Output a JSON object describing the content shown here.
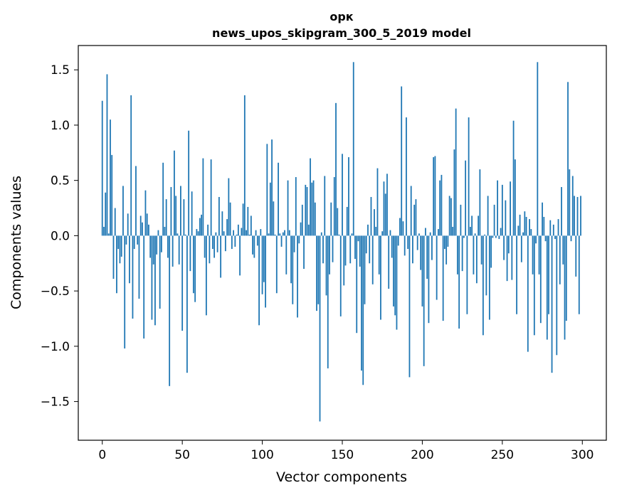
{
  "chart_data": {
    "type": "bar",
    "title": "орк",
    "subtitle": "news_upos_skipgram_300_5_2019 model",
    "xlabel": "Vector components",
    "ylabel": "Components values",
    "xlim": [
      -15,
      315
    ],
    "ylim": [
      -1.85,
      1.72
    ],
    "xticks": [
      0,
      50,
      100,
      150,
      200,
      250,
      300
    ],
    "yticks": [
      -1.5,
      -1.0,
      -0.5,
      0.0,
      0.5,
      1.0,
      1.5
    ],
    "ytick_labels": [
      "−1.5",
      "−1.0",
      "−0.5",
      "0.0",
      "0.5",
      "1.0",
      "1.5"
    ],
    "bar_color": "#1f77b4",
    "grid": false,
    "legend": "none",
    "x": [
      0,
      1,
      2,
      3,
      4,
      5,
      6,
      7,
      8,
      9,
      10,
      11,
      12,
      13,
      14,
      15,
      16,
      17,
      18,
      19,
      20,
      21,
      22,
      23,
      24,
      25,
      26,
      27,
      28,
      29,
      30,
      31,
      32,
      33,
      34,
      35,
      36,
      37,
      38,
      39,
      40,
      41,
      42,
      43,
      44,
      45,
      46,
      47,
      48,
      49,
      50,
      51,
      52,
      53,
      54,
      55,
      56,
      57,
      58,
      59,
      60,
      61,
      62,
      63,
      64,
      65,
      66,
      67,
      68,
      69,
      70,
      71,
      72,
      73,
      74,
      75,
      76,
      77,
      78,
      79,
      80,
      81,
      82,
      83,
      84,
      85,
      86,
      87,
      88,
      89,
      90,
      91,
      92,
      93,
      94,
      95,
      96,
      97,
      98,
      99,
      100,
      101,
      102,
      103,
      104,
      105,
      106,
      107,
      108,
      109,
      110,
      111,
      112,
      113,
      114,
      115,
      116,
      117,
      118,
      119,
      120,
      121,
      122,
      123,
      124,
      125,
      126,
      127,
      128,
      129,
      130,
      131,
      132,
      133,
      134,
      135,
      136,
      137,
      138,
      139,
      140,
      141,
      142,
      143,
      144,
      145,
      146,
      147,
      148,
      149,
      150,
      151,
      152,
      153,
      154,
      155,
      156,
      157,
      158,
      159,
      160,
      161,
      162,
      163,
      164,
      165,
      166,
      167,
      168,
      169,
      170,
      171,
      172,
      173,
      174,
      175,
      176,
      177,
      178,
      179,
      180,
      181,
      182,
      183,
      184,
      185,
      186,
      187,
      188,
      189,
      190,
      191,
      192,
      193,
      194,
      195,
      196,
      197,
      198,
      199,
      200,
      201,
      202,
      203,
      204,
      205,
      206,
      207,
      208,
      209,
      210,
      211,
      212,
      213,
      214,
      215,
      216,
      217,
      218,
      219,
      220,
      221,
      222,
      223,
      224,
      225,
      226,
      227,
      228,
      229,
      230,
      231,
      232,
      233,
      234,
      235,
      236,
      237,
      238,
      239,
      240,
      241,
      242,
      243,
      244,
      245,
      246,
      247,
      248,
      249,
      250,
      251,
      252,
      253,
      254,
      255,
      256,
      257,
      258,
      259,
      260,
      261,
      262,
      263,
      264,
      265,
      266,
      267,
      268,
      269,
      270,
      271,
      272,
      273,
      274,
      275,
      276,
      277,
      278,
      279,
      280,
      281,
      282,
      283,
      284,
      285,
      286,
      287,
      288,
      289,
      290,
      291,
      292,
      293,
      294,
      295,
      296,
      297,
      298,
      299
    ],
    "values": [
      1.22,
      0.08,
      0.39,
      1.46,
      0.02,
      1.05,
      0.73,
      -0.39,
      0.25,
      -0.52,
      -0.12,
      -0.25,
      -0.19,
      0.45,
      -1.02,
      -0.08,
      0.2,
      -0.43,
      1.27,
      -0.75,
      -0.12,
      0.63,
      -0.08,
      -0.57,
      0.18,
      0.12,
      -0.93,
      0.41,
      0.2,
      0.1,
      -0.2,
      -0.76,
      -0.26,
      -0.81,
      -0.17,
      0.05,
      -0.66,
      -0.15,
      0.66,
      0.08,
      0.33,
      -0.2,
      -1.36,
      0.44,
      -0.28,
      0.77,
      0.36,
      0.02,
      -0.26,
      0.45,
      -0.86,
      0.33,
      0.01,
      -1.24,
      0.95,
      -0.32,
      0.4,
      -0.52,
      -0.6,
      0.06,
      0.04,
      0.16,
      0.19,
      0.7,
      -0.2,
      -0.72,
      0.1,
      -0.25,
      0.69,
      -0.12,
      -0.2,
      0.03,
      -0.15,
      0.35,
      -0.38,
      0.22,
      0.04,
      -0.14,
      0.15,
      0.52,
      0.3,
      -0.12,
      0.05,
      -0.1,
      0.01,
      0.1,
      -0.36,
      0.07,
      0.29,
      1.27,
      0.05,
      0.26,
      0.01,
      0.18,
      -0.17,
      -0.2,
      0.05,
      -0.09,
      -0.81,
      0.06,
      -0.53,
      -0.42,
      -0.65,
      0.83,
      0.02,
      0.48,
      0.87,
      0.31,
      0.01,
      -0.52,
      0.66,
      0.02,
      -0.1,
      0.03,
      0.05,
      -0.35,
      0.5,
      0.05,
      -0.43,
      -0.62,
      -0.15,
      0.53,
      -0.74,
      -0.07,
      0.12,
      0.28,
      -0.3,
      0.46,
      0.44,
      0.1,
      0.7,
      0.48,
      0.5,
      0.3,
      -0.68,
      -0.62,
      -1.68,
      0.03,
      -0.25,
      0.54,
      -0.54,
      -1.2,
      -0.35,
      0.3,
      -0.24,
      0.53,
      1.2,
      0.25,
      0.01,
      -0.73,
      0.74,
      -0.45,
      -0.27,
      0.26,
      0.71,
      -0.25,
      0.02,
      1.57,
      -0.21,
      -0.88,
      -0.05,
      -0.28,
      -1.22,
      -1.35,
      -0.62,
      -0.16,
      0.1,
      -0.25,
      0.35,
      -0.44,
      0.24,
      0.08,
      0.61,
      -0.35,
      -0.76,
      0.04,
      0.49,
      0.38,
      0.56,
      -0.48,
      0.05,
      -0.2,
      -0.64,
      -0.72,
      -0.85,
      -0.09,
      0.16,
      1.35,
      0.13,
      -0.18,
      1.07,
      -0.12,
      -1.28,
      0.45,
      -0.25,
      0.28,
      0.33,
      -0.13,
      0.02,
      -0.31,
      -0.64,
      -1.18,
      0.07,
      -0.39,
      -0.79,
      0.03,
      -0.22,
      0.71,
      0.72,
      -0.58,
      0.06,
      0.5,
      0.55,
      -0.77,
      -0.12,
      -0.26,
      -0.1,
      0.36,
      0.34,
      0.08,
      0.78,
      1.15,
      -0.35,
      -0.84,
      0.28,
      -0.32,
      -0.02,
      0.68,
      -0.71,
      1.07,
      0.08,
      0.18,
      -0.35,
      0.02,
      -0.43,
      0.18,
      0.6,
      -0.26,
      -0.9,
      0.01,
      -0.54,
      0.36,
      -0.76,
      -0.29,
      -0.02,
      0.28,
      -0.02,
      0.5,
      -0.03,
      0.07,
      0.46,
      -0.22,
      0.32,
      -0.41,
      -0.16,
      0.49,
      -0.4,
      1.04,
      0.69,
      -0.71,
      0.09,
      0.19,
      -0.24,
      0.03,
      0.22,
      0.17,
      -1.05,
      0.15,
      0.06,
      -0.35,
      -0.9,
      -0.07,
      1.57,
      -0.35,
      -0.79,
      0.3,
      0.17,
      -0.05,
      -0.94,
      -0.71,
      0.14,
      -1.24,
      0.1,
      -0.03,
      -1.08,
      0.15,
      -0.44,
      0.44,
      -0.26,
      -0.94,
      -0.77,
      1.39,
      0.6,
      -0.05,
      0.54,
      0.36,
      -0.37,
      0.35,
      -0.71,
      0.36
    ]
  }
}
